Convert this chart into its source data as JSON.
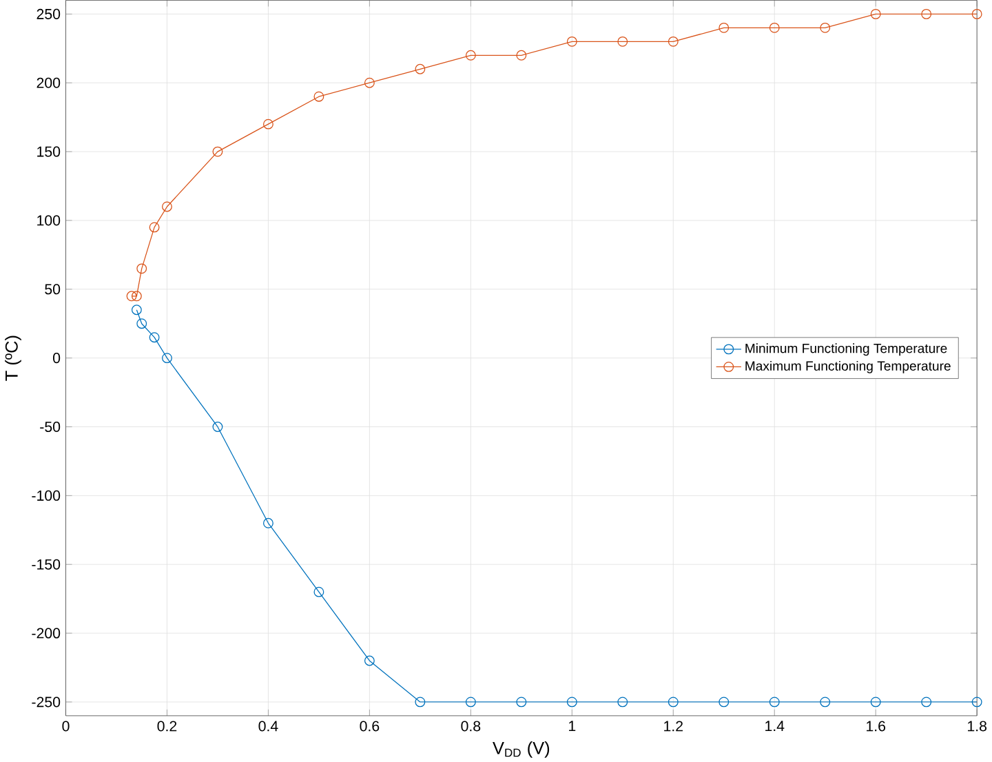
{
  "chart_data": {
    "type": "line",
    "xlabel": "V$_{DD}$ (V)",
    "ylabel": "T (ºC)",
    "xlim": [
      0,
      1.8
    ],
    "ylim": [
      -260,
      260
    ],
    "xticks": [
      0,
      0.2,
      0.4,
      0.6,
      0.8,
      1,
      1.2,
      1.4,
      1.6,
      1.8
    ],
    "yticks": [
      -250,
      -200,
      -150,
      -100,
      -50,
      0,
      50,
      100,
      150,
      200,
      250
    ],
    "grid": true,
    "legend": "right",
    "marker": "circle",
    "line_style": "solid",
    "series": [
      {
        "name": "Minimum Functioning Temperature",
        "color": "#0072bd",
        "x": [
          0.14,
          0.15,
          0.175,
          0.2,
          0.3,
          0.4,
          0.5,
          0.6,
          0.7,
          0.8,
          0.9,
          1.0,
          1.1,
          1.2,
          1.3,
          1.4,
          1.5,
          1.6,
          1.7,
          1.8
        ],
        "values": [
          35,
          25,
          15,
          0,
          -50,
          -120,
          -170,
          -220,
          -250,
          -250,
          -250,
          -250,
          -250,
          -250,
          -250,
          -250,
          -250,
          -250,
          -250,
          -250
        ]
      },
      {
        "name": "Maximum Functioning Temperature",
        "color": "#d95319",
        "x": [
          0.13,
          0.14,
          0.15,
          0.175,
          0.2,
          0.3,
          0.4,
          0.5,
          0.6,
          0.7,
          0.8,
          0.9,
          1.0,
          1.1,
          1.2,
          1.3,
          1.4,
          1.5,
          1.6,
          1.7,
          1.8
        ],
        "values": [
          45,
          45,
          65,
          95,
          110,
          150,
          170,
          190,
          200,
          210,
          220,
          220,
          230,
          230,
          230,
          240,
          240,
          240,
          250,
          250,
          250
        ]
      }
    ]
  }
}
